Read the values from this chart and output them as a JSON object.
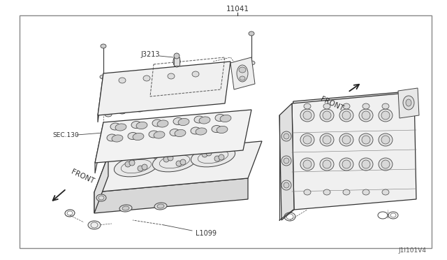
{
  "bg_color": "#ffffff",
  "border_color": "#888888",
  "line_color": "#333333",
  "text_color": "#333333",
  "title_outside": "11041",
  "label_j3213": "J3213",
  "label_l1099": "L1099",
  "label_sec130": "SEC.130",
  "label_front_left": "FRONT",
  "label_front_right": "FRONT",
  "label_bottom_right": "J1I101V4",
  "fig_width": 6.4,
  "fig_height": 3.72,
  "dpi": 100
}
